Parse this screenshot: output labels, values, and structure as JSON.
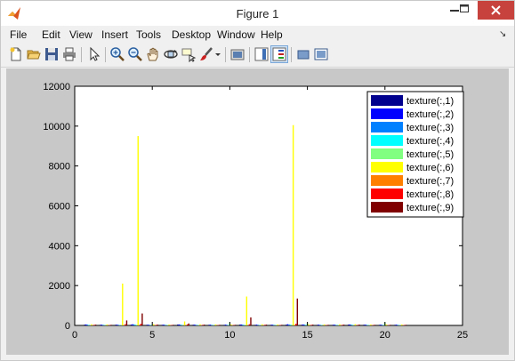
{
  "window": {
    "title": "Figure 1"
  },
  "menu": {
    "items": [
      "File",
      "Edit",
      "View",
      "Insert",
      "Tools",
      "Desktop",
      "Window",
      "Help"
    ]
  },
  "toolbar": {
    "icons": [
      "new-figure-icon",
      "open-file-icon",
      "save-icon",
      "print-icon",
      "edit-plot-icon",
      "zoom-in-icon",
      "zoom-out-icon",
      "pan-icon",
      "rotate-3d-icon",
      "data-cursor-icon",
      "brush-icon",
      "brush-dropdown-icon",
      "link-plot-icon",
      "insert-colorbar-icon",
      "insert-legend-icon",
      "hide-plot-tools-icon",
      "show-plot-tools-icon"
    ]
  },
  "chart_data": {
    "type": "bar",
    "title": "",
    "xlabel": "",
    "ylabel": "",
    "xlim": [
      0,
      25
    ],
    "ylim": [
      0,
      12000
    ],
    "xticks": [
      "0",
      "5",
      "10",
      "15",
      "20",
      "25"
    ],
    "yticks": [
      "0",
      "2000",
      "4000",
      "6000",
      "8000",
      "10000",
      "12000"
    ],
    "grid": false,
    "legend_position": "top-right",
    "x": [
      1,
      2,
      3,
      4,
      5,
      6,
      7,
      8,
      9,
      10,
      11,
      12,
      13,
      14,
      15,
      16,
      17,
      18,
      19,
      20,
      21
    ],
    "series": [
      {
        "name": "texture(:,1)",
        "color": "#00008f",
        "values": [
          40,
          30,
          35,
          40,
          30,
          30,
          45,
          35,
          30,
          30,
          40,
          30,
          30,
          40,
          35,
          30,
          30,
          40,
          35,
          30,
          30
        ]
      },
      {
        "name": "texture(:,2)",
        "color": "#0000ff",
        "values": [
          50,
          40,
          40,
          60,
          40,
          40,
          50,
          40,
          40,
          40,
          50,
          40,
          40,
          60,
          50,
          40,
          40,
          50,
          40,
          40,
          40
        ]
      },
      {
        "name": "texture(:,3)",
        "color": "#0080ff",
        "values": [
          40,
          30,
          30,
          50,
          30,
          30,
          40,
          30,
          30,
          30,
          40,
          30,
          30,
          50,
          40,
          30,
          30,
          40,
          30,
          30,
          30
        ]
      },
      {
        "name": "texture(:,4)",
        "color": "#00ffff",
        "values": [
          30,
          20,
          20,
          40,
          20,
          20,
          30,
          20,
          20,
          20,
          30,
          20,
          20,
          40,
          30,
          20,
          20,
          30,
          20,
          20,
          20
        ]
      },
      {
        "name": "texture(:,5)",
        "color": "#80ff80",
        "values": [
          20,
          20,
          20,
          30,
          20,
          20,
          20,
          20,
          20,
          150,
          20,
          20,
          20,
          30,
          120,
          20,
          20,
          20,
          20,
          150,
          20
        ]
      },
      {
        "name": "texture(:,6)",
        "color": "#ffff00",
        "values": [
          60,
          50,
          2100,
          9500,
          60,
          50,
          200,
          60,
          50,
          50,
          1450,
          60,
          50,
          10050,
          60,
          50,
          60,
          60,
          50,
          50,
          50
        ]
      },
      {
        "name": "texture(:,7)",
        "color": "#ff8000",
        "values": [
          20,
          20,
          20,
          30,
          20,
          20,
          20,
          20,
          20,
          20,
          20,
          20,
          20,
          30,
          20,
          20,
          20,
          20,
          20,
          20,
          20
        ]
      },
      {
        "name": "texture(:,8)",
        "color": "#ff0000",
        "values": [
          30,
          20,
          60,
          80,
          30,
          20,
          50,
          30,
          20,
          20,
          60,
          30,
          20,
          80,
          30,
          20,
          30,
          30,
          20,
          20,
          20
        ]
      },
      {
        "name": "texture(:,9)",
        "color": "#800000",
        "values": [
          40,
          30,
          250,
          600,
          40,
          30,
          100,
          40,
          30,
          30,
          400,
          40,
          30,
          1350,
          40,
          30,
          40,
          40,
          30,
          30,
          30
        ]
      }
    ]
  }
}
